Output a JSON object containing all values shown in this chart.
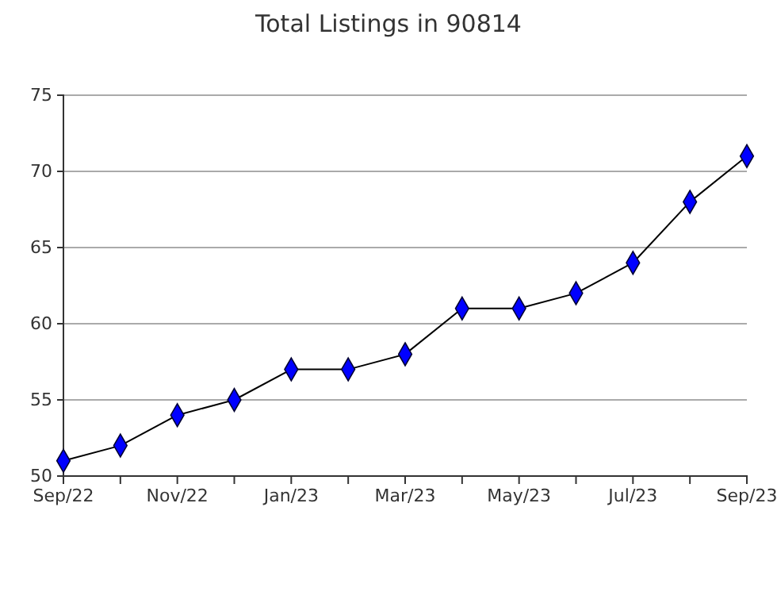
{
  "chart_data": {
    "type": "line",
    "title": "Total Listings in 90814",
    "categories": [
      "Sep/22",
      null,
      "Nov/22",
      null,
      "Jan/23",
      null,
      "Mar/23",
      null,
      "May/23",
      null,
      "Jul/23",
      null,
      "Sep/23"
    ],
    "series": [
      {
        "color": "#0000ff",
        "values": [
          51,
          52,
          54,
          55,
          57,
          57,
          58,
          61,
          61,
          62,
          64,
          68,
          71
        ]
      }
    ],
    "ylim": [
      50,
      75
    ],
    "yticks": [
      50,
      55,
      60,
      65,
      70,
      75
    ],
    "grid": "y",
    "marker": "diamond",
    "line_style": "solid"
  }
}
